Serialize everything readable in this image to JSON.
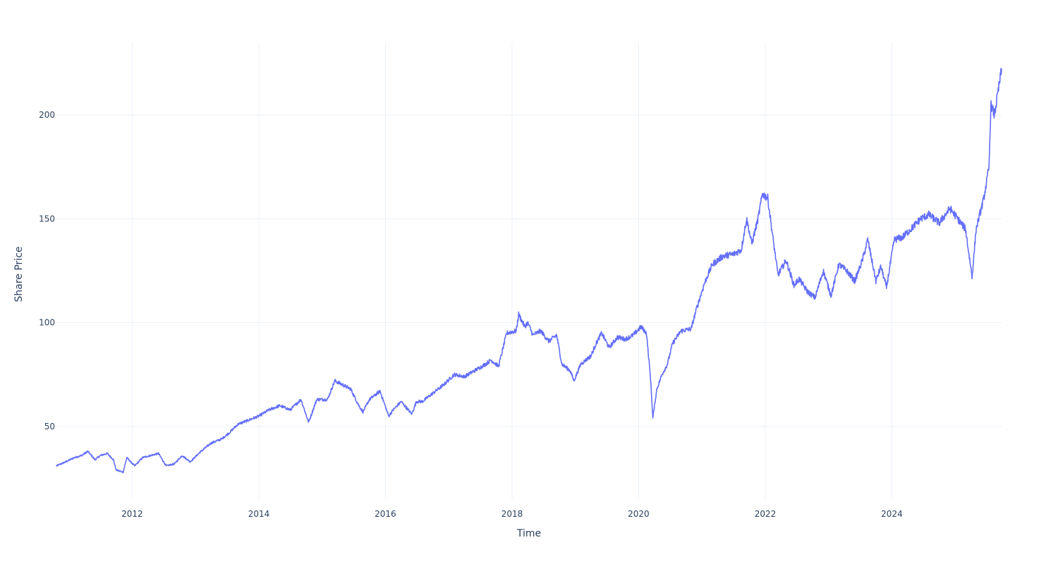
{
  "chart_data": {
    "type": "line",
    "xlabel": "Time",
    "ylabel": "Share Price",
    "x_ticks": [
      "2012",
      "2014",
      "2016",
      "2018",
      "2020",
      "2022",
      "2024"
    ],
    "y_ticks": [
      50,
      100,
      150,
      200
    ],
    "xlim": [
      "2010-10-21",
      "2025-09-25"
    ],
    "ylim": [
      15,
      235
    ],
    "grid": true,
    "colors": {
      "line": "#636efa",
      "grid": "#ebf0f8",
      "text": "#2a3f5f"
    },
    "series": [
      {
        "x": [
          "2010-10-21",
          "2010-12-15",
          "2011-02-01",
          "2011-03-15",
          "2011-04-20",
          "2011-06-01",
          "2011-07-01",
          "2011-08-10",
          "2011-09-15",
          "2011-10-01",
          "2011-11-10",
          "2011-12-01",
          "2012-01-15",
          "2012-03-01",
          "2012-04-15",
          "2012-06-01",
          "2012-07-15",
          "2012-09-01",
          "2012-10-15",
          "2012-12-01",
          "2013-02-01",
          "2013-04-01",
          "2013-06-01",
          "2013-07-15",
          "2013-09-01",
          "2013-11-01",
          "2014-01-01",
          "2014-03-01",
          "2014-05-01",
          "2014-07-01",
          "2014-09-01",
          "2014-10-15",
          "2014-12-01",
          "2015-02-01",
          "2015-03-15",
          "2015-05-01",
          "2015-06-15",
          "2015-08-01",
          "2015-08-25",
          "2015-10-01",
          "2015-12-01",
          "2016-01-20",
          "2016-02-15",
          "2016-04-01",
          "2016-06-01",
          "2016-06-28",
          "2016-08-01",
          "2016-10-01",
          "2016-12-01",
          "2017-02-01",
          "2017-04-01",
          "2017-06-01",
          "2017-08-01",
          "2017-09-01",
          "2017-10-15",
          "2017-12-01",
          "2018-01-25",
          "2018-02-08",
          "2018-03-15",
          "2018-04-01",
          "2018-05-01",
          "2018-06-15",
          "2018-08-01",
          "2018-09-15",
          "2018-10-15",
          "2018-12-01",
          "2018-12-24",
          "2019-02-01",
          "2019-04-01",
          "2019-05-01",
          "2019-06-01",
          "2019-07-15",
          "2019-09-01",
          "2019-10-15",
          "2019-12-01",
          "2020-01-15",
          "2020-02-15",
          "2020-03-10",
          "2020-03-23",
          "2020-04-15",
          "2020-05-15",
          "2020-06-15",
          "2020-07-15",
          "2020-09-01",
          "2020-10-30",
          "2020-12-01",
          "2021-01-15",
          "2021-03-01",
          "2021-05-01",
          "2021-07-01",
          "2021-08-15",
          "2021-09-15",
          "2021-10-15",
          "2021-11-20",
          "2021-12-15",
          "2022-01-15",
          "2022-02-15",
          "2022-03-15",
          "2022-05-01",
          "2022-06-15",
          "2022-07-15",
          "2022-09-01",
          "2022-10-15",
          "2022-12-01",
          "2023-01-15",
          "2023-03-01",
          "2023-04-15",
          "2023-06-01",
          "2023-07-15",
          "2023-08-15",
          "2023-10-01",
          "2023-10-30",
          "2023-12-01",
          "2024-01-15",
          "2024-03-01",
          "2024-05-01",
          "2024-06-15",
          "2024-08-01",
          "2024-10-01",
          "2024-12-01",
          "2025-01-15",
          "2025-03-01",
          "2025-04-08",
          "2025-05-01",
          "2025-06-15",
          "2025-07-15",
          "2025-07-25",
          "2025-08-15",
          "2025-09-25"
        ],
        "y": [
          31,
          33,
          35,
          36,
          38,
          34,
          36,
          37,
          34,
          29,
          28,
          35,
          31,
          35,
          36,
          37,
          31,
          32,
          36,
          33,
          38,
          42,
          44,
          47,
          51,
          53,
          55,
          58,
          60,
          58,
          63,
          52,
          63,
          63,
          72,
          70,
          68,
          60,
          57,
          63,
          67,
          55,
          58,
          62,
          56,
          62,
          62,
          66,
          70,
          75,
          74,
          77,
          80,
          82,
          79,
          95,
          96,
          104,
          98,
          100,
          94,
          96,
          91,
          94,
          80,
          77,
          72,
          80,
          84,
          90,
          95,
          88,
          93,
          92,
          94,
          98,
          95,
          73,
          54,
          68,
          75,
          80,
          90,
          96,
          97,
          107,
          119,
          128,
          132,
          133,
          135,
          150,
          138,
          150,
          162,
          160,
          140,
          123,
          130,
          118,
          121,
          115,
          112,
          125,
          113,
          128,
          125,
          120,
          130,
          140,
          120,
          127,
          117,
          140,
          141,
          146,
          150,
          152,
          148,
          155,
          150,
          145,
          122,
          145,
          160,
          175,
          205,
          200,
          222
        ]
      }
    ]
  }
}
